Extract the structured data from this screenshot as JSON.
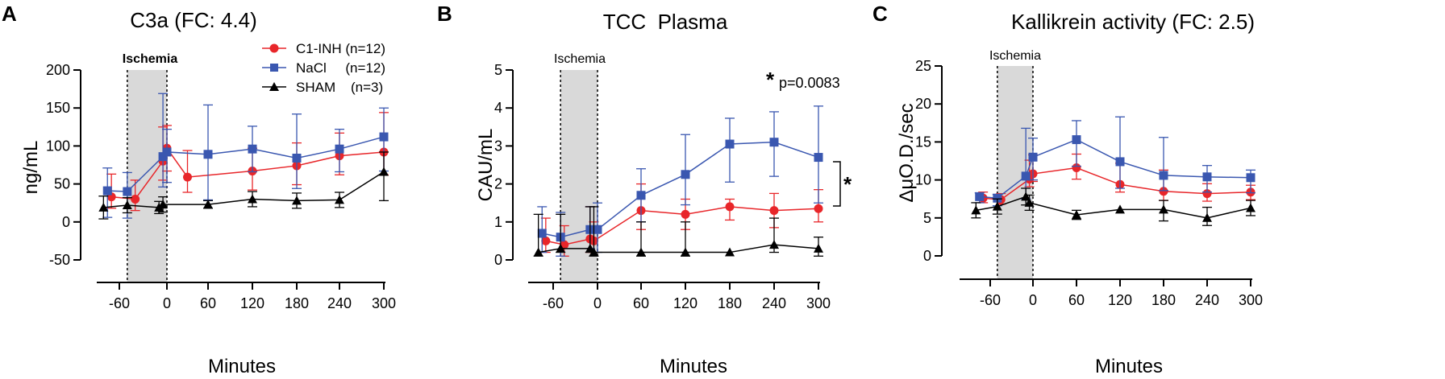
{
  "colors": {
    "c1inh": "#e8262a",
    "nacl": "#3a57b0",
    "sham": "#000000",
    "ischemia_band": "#d9d9d9"
  },
  "legend": [
    {
      "key": "c1inh",
      "label": "C1-INH (n=12)",
      "marker": "circle"
    },
    {
      "key": "nacl",
      "label": "NaCl     (n=12)",
      "marker": "square"
    },
    {
      "key": "sham",
      "label": "SHAM    (n=3)",
      "marker": "triangle"
    }
  ],
  "chart_data": [
    {
      "panel": "A",
      "type": "line",
      "title": "C3a (FC: 4.4)",
      "xlabel": "Minutes",
      "ylabel": "ng/mL",
      "xlim": [
        -90,
        305
      ],
      "ylim": [
        -50,
        200
      ],
      "yticks": [
        -50,
        0,
        50,
        100,
        150,
        200
      ],
      "xticks": [
        -60,
        0,
        60,
        120,
        180,
        240,
        300
      ],
      "ischemia": {
        "label": "Ischemia",
        "bold": true,
        "start": -50,
        "end": 0
      },
      "series": [
        {
          "key": "c1inh",
          "name": "C1-INH (n=12)",
          "x": [
            -70,
            -40,
            -5,
            0,
            30,
            120,
            180,
            240,
            300
          ],
          "y": [
            33,
            30,
            80,
            97,
            59,
            67,
            74,
            87,
            92
          ],
          "err_up": [
            30,
            25,
            45,
            30,
            35,
            30,
            30,
            30,
            52
          ],
          "err_dn": [
            15,
            15,
            25,
            30,
            20,
            25,
            25,
            25,
            30
          ]
        },
        {
          "key": "nacl",
          "name": "NaCl (n=12)",
          "x": [
            -75,
            -50,
            -5,
            0,
            60,
            120,
            180,
            240,
            300
          ],
          "y": [
            41,
            40,
            86,
            92,
            89,
            96,
            84,
            96,
            112
          ],
          "err_up": [
            30,
            25,
            83,
            30,
            65,
            30,
            58,
            26,
            38
          ],
          "err_dn": [
            35,
            35,
            40,
            40,
            60,
            30,
            40,
            30,
            45
          ]
        },
        {
          "key": "sham",
          "name": "SHAM (n=3)",
          "x": [
            -80,
            -50,
            -10,
            -5,
            60,
            120,
            180,
            240,
            300
          ],
          "y": [
            19,
            22,
            19,
            23,
            23,
            30,
            28,
            29,
            66
          ],
          "err_up": [
            15,
            10,
            8,
            10,
            5,
            10,
            10,
            10,
            26
          ],
          "err_dn": [
            15,
            10,
            8,
            10,
            5,
            10,
            10,
            10,
            38
          ]
        }
      ]
    },
    {
      "panel": "B",
      "type": "line",
      "title": "TCC  Plasma",
      "xlabel": "Minutes",
      "ylabel": "CAU/mL",
      "xlim": [
        -90,
        305
      ],
      "ylim": [
        0,
        5
      ],
      "yticks": [
        0,
        1,
        2,
        3,
        4,
        5
      ],
      "xticks": [
        -60,
        0,
        60,
        120,
        180,
        240,
        300
      ],
      "ischemia": {
        "label": "Ischemia",
        "bold": false,
        "start": -50,
        "end": 0
      },
      "annotation": {
        "star": "*",
        "text": "p=0.0083",
        "bracket_star": "*"
      },
      "series": [
        {
          "key": "c1inh",
          "name": "C1-INH (n=12)",
          "x": [
            -70,
            -45,
            -10,
            -5,
            60,
            120,
            180,
            240,
            300
          ],
          "y": [
            0.5,
            0.4,
            0.55,
            0.5,
            1.3,
            1.2,
            1.4,
            1.3,
            1.35
          ],
          "err_up": [
            0.6,
            0.5,
            0.85,
            0.5,
            0.7,
            0.4,
            0.2,
            0.45,
            0.5
          ],
          "err_dn": [
            0.3,
            0.3,
            0.35,
            0.3,
            0.5,
            0.4,
            0.35,
            0.45,
            0.35
          ]
        },
        {
          "key": "nacl",
          "name": "NaCl (n=12)",
          "x": [
            -75,
            -50,
            -10,
            0,
            60,
            120,
            180,
            240,
            300
          ],
          "y": [
            0.7,
            0.6,
            0.8,
            0.8,
            1.7,
            2.25,
            3.05,
            3.1,
            2.7
          ],
          "err_up": [
            0.7,
            0.65,
            0.6,
            0.7,
            0.7,
            1.05,
            0.68,
            0.8,
            1.35
          ],
          "err_dn": [
            0.5,
            0.5,
            0.5,
            0.6,
            0.7,
            0.8,
            1.0,
            0.9,
            1.2
          ]
        },
        {
          "key": "sham",
          "name": "SHAM (n=3)",
          "x": [
            -80,
            -50,
            -10,
            -5,
            60,
            120,
            180,
            240,
            300
          ],
          "y": [
            0.2,
            0.3,
            0.3,
            0.2,
            0.2,
            0.2,
            0.2,
            0.4,
            0.3
          ],
          "err_up": [
            1.0,
            0.9,
            1.1,
            1.2,
            0.8,
            0.8,
            0.0,
            0.7,
            0.3
          ],
          "err_dn": [
            0.1,
            0.1,
            0.1,
            0.1,
            0.1,
            0.1,
            0.0,
            0.2,
            0.2
          ]
        }
      ]
    },
    {
      "panel": "C",
      "type": "line",
      "title": "Kallikrein activity (FC: 2.5)",
      "xlabel": "Minutes",
      "ylabel": "ΔμO.D./sec",
      "xlim": [
        -90,
        305
      ],
      "ylim": [
        0,
        25
      ],
      "yticks": [
        0,
        5,
        10,
        15,
        20,
        25
      ],
      "xticks": [
        -60,
        0,
        60,
        120,
        180,
        240,
        300
      ],
      "ischemia": {
        "label": "Ischemia",
        "bold": false,
        "start": -50,
        "end": 0
      },
      "series": [
        {
          "key": "c1inh",
          "name": "C1-INH (n=12)",
          "x": [
            -70,
            -45,
            -5,
            0,
            60,
            120,
            180,
            240,
            300
          ],
          "y": [
            7.6,
            7.4,
            10.1,
            10.8,
            11.6,
            9.4,
            8.5,
            8.2,
            8.4
          ],
          "err_up": [
            0.8,
            0.8,
            2.5,
            2.5,
            1.8,
            2.8,
            2.8,
            1.3,
            0.9
          ],
          "err_dn": [
            0.6,
            0.6,
            1.0,
            1.0,
            1.5,
            1.0,
            1.2,
            1.0,
            1.0
          ]
        },
        {
          "key": "nacl",
          "name": "NaCl (n=12)",
          "x": [
            -75,
            -50,
            -10,
            0,
            60,
            120,
            180,
            240,
            300
          ],
          "y": [
            7.8,
            7.6,
            10.5,
            13.0,
            15.3,
            12.4,
            10.6,
            10.4,
            10.3
          ],
          "err_up": [
            0.5,
            0.5,
            6.3,
            2.5,
            2.5,
            5.9,
            5.0,
            1.5,
            1.0
          ],
          "err_dn": [
            0.8,
            1.0,
            3.0,
            3.0,
            3.5,
            3.5,
            2.0,
            2.0,
            2.0
          ]
        },
        {
          "key": "sham",
          "name": "SHAM (n=3)",
          "x": [
            -80,
            -50,
            -10,
            -5,
            60,
            120,
            180,
            240,
            300
          ],
          "y": [
            6.0,
            6.5,
            7.8,
            7.0,
            5.4,
            6.1,
            6.1,
            5.0,
            6.3
          ],
          "err_up": [
            1.0,
            1.0,
            1.1,
            1.0,
            0.6,
            0.0,
            1.2,
            1.4,
            1.0
          ],
          "err_dn": [
            1.0,
            1.0,
            1.1,
            1.0,
            0.6,
            0.0,
            1.5,
            1.0,
            1.0
          ]
        }
      ]
    }
  ]
}
